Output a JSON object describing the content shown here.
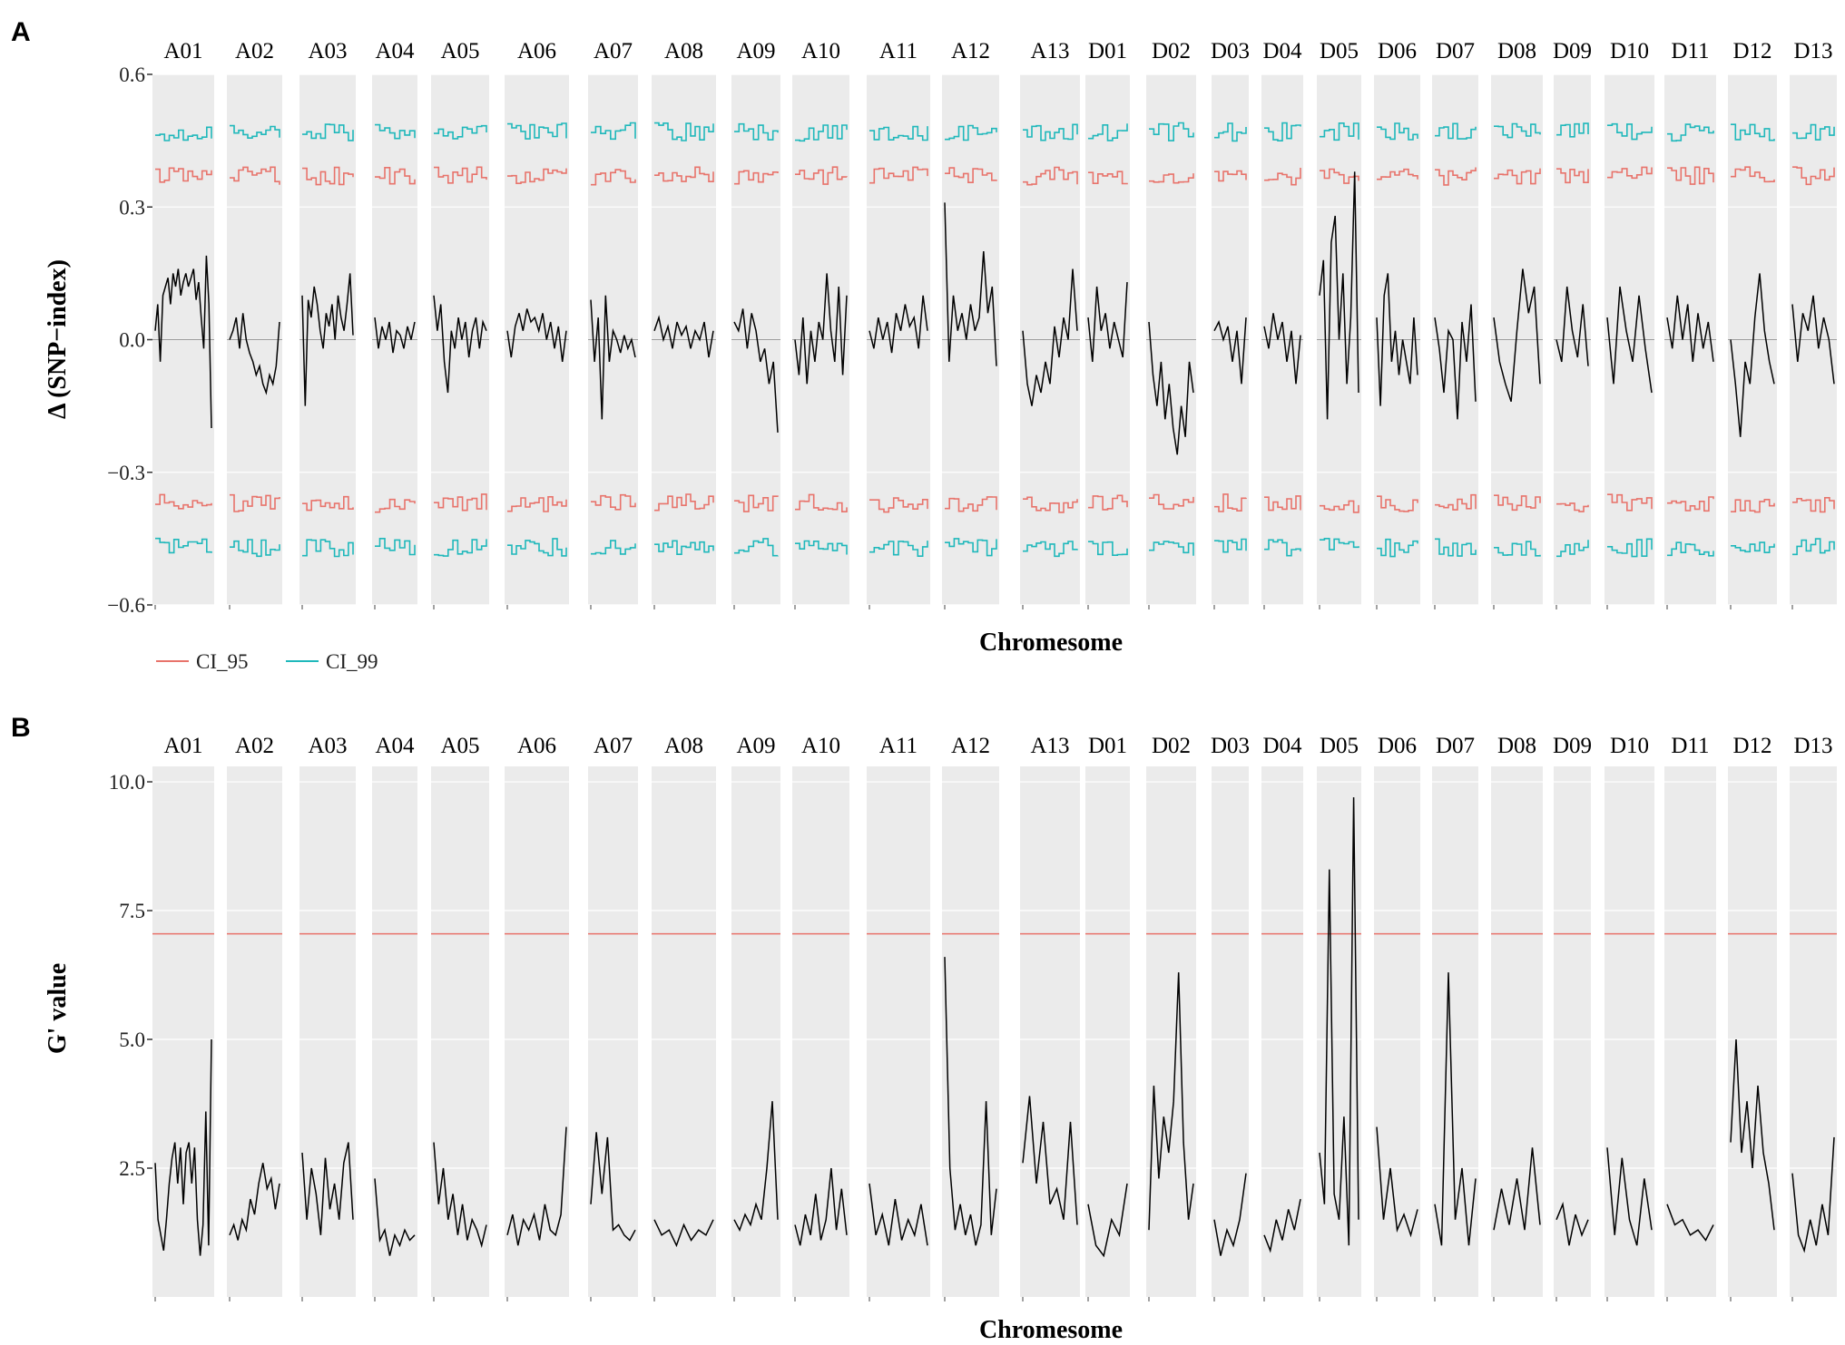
{
  "panels": {
    "A": {
      "letter": "A"
    },
    "B": {
      "letter": "B"
    }
  },
  "legend": {
    "ci95_label": "CI_95",
    "ci99_label": "CI_99",
    "ci95_color": "#e8736b",
    "ci99_color": "#1fb8bb"
  },
  "colors": {
    "panel_bg": "#ebebeb",
    "line": "#000000",
    "threshold": "#e8736b",
    "zero_line": "#9a9a9a"
  },
  "chart_data": [
    {
      "type": "line",
      "panel": "A",
      "title": "",
      "xlabel": "Chromesome",
      "ylabel": "Δ (SNP−index)",
      "ylim": [
        -0.6,
        0.6
      ],
      "yticks": [
        0.6,
        0.3,
        0.0,
        -0.3,
        -0.6
      ],
      "ytick_labels": [
        "0.6",
        "0.3",
        "0.0",
        "−0.3",
        "−0.6"
      ],
      "grid": true,
      "legend_position": "bottom-left",
      "categories": [
        "A01",
        "A02",
        "A03",
        "A04",
        "A05",
        "A06",
        "A07",
        "A08",
        "A09",
        "A10",
        "A11",
        "A12",
        "A13",
        "D01",
        "D02",
        "D03",
        "D04",
        "D05",
        "D06",
        "D07",
        "D08",
        "D09",
        "D10",
        "D11",
        "D12",
        "D13"
      ],
      "series": [
        {
          "name": "Δ(SNP-index)",
          "values": {
            "A01": [
              0.02,
              0.08,
              -0.05,
              0.1,
              0.12,
              0.14,
              0.08,
              0.15,
              0.12,
              0.16,
              0.1,
              0.13,
              0.15,
              0.12,
              0.14,
              0.16,
              0.09,
              0.13,
              0.05,
              -0.02,
              0.19,
              0.08,
              -0.2
            ],
            "A02": [
              0.0,
              0.02,
              0.05,
              -0.02,
              0.06,
              0.0,
              -0.03,
              -0.05,
              -0.08,
              -0.06,
              -0.1,
              -0.12,
              -0.08,
              -0.1,
              -0.06,
              0.04
            ],
            "A03": [
              0.1,
              -0.15,
              0.09,
              0.05,
              0.12,
              0.08,
              0.02,
              -0.02,
              0.06,
              0.03,
              0.08,
              0.0,
              0.1,
              0.05,
              0.02,
              0.08,
              0.15,
              0.01
            ],
            "A04": [
              0.05,
              -0.02,
              0.03,
              0.0,
              0.04,
              -0.03,
              0.02,
              0.01,
              -0.02,
              0.03,
              0.0,
              0.04
            ],
            "A05": [
              0.1,
              0.02,
              0.08,
              -0.05,
              -0.12,
              0.02,
              -0.02,
              0.05,
              0.0,
              0.04,
              -0.04,
              0.02,
              0.05,
              -0.02,
              0.04,
              0.02
            ],
            "A06": [
              0.02,
              -0.04,
              0.03,
              0.06,
              0.02,
              0.07,
              0.04,
              0.05,
              0.02,
              0.06,
              0.0,
              0.04,
              -0.02,
              0.03,
              -0.05,
              0.02
            ],
            "A07": [
              0.09,
              -0.05,
              0.05,
              -0.18,
              0.1,
              -0.05,
              0.02,
              0.0,
              -0.03,
              0.01,
              -0.02,
              0.0,
              -0.04
            ],
            "A08": [
              0.02,
              0.05,
              0.0,
              0.03,
              -0.02,
              0.04,
              0.01,
              0.03,
              -0.02,
              0.02,
              0.0,
              0.04,
              -0.04,
              0.02
            ],
            "A09": [
              0.04,
              0.02,
              0.07,
              -0.02,
              0.06,
              0.02,
              -0.05,
              -0.02,
              -0.1,
              -0.05,
              -0.21
            ],
            "A10": [
              0.0,
              -0.08,
              0.05,
              -0.1,
              0.02,
              -0.05,
              0.04,
              0.0,
              0.15,
              0.02,
              -0.05,
              0.12,
              -0.08,
              0.1
            ],
            "A11": [
              0.02,
              -0.02,
              0.05,
              0.0,
              0.04,
              -0.03,
              0.06,
              0.02,
              0.08,
              0.03,
              0.05,
              -0.02,
              0.1,
              0.02
            ],
            "A12": [
              0.31,
              -0.05,
              0.1,
              0.02,
              0.06,
              0.0,
              0.08,
              0.02,
              0.05,
              0.2,
              0.06,
              0.12,
              -0.06
            ],
            "A13": [
              0.02,
              -0.1,
              -0.15,
              -0.08,
              -0.12,
              -0.05,
              -0.1,
              0.03,
              -0.04,
              0.05,
              0.0,
              0.16,
              0.02
            ],
            "D01": [
              0.05,
              -0.05,
              0.12,
              0.02,
              0.06,
              -0.02,
              0.04,
              0.0,
              -0.04,
              0.13
            ],
            "D02": [
              0.04,
              -0.08,
              -0.15,
              -0.05,
              -0.18,
              -0.1,
              -0.2,
              -0.26,
              -0.15,
              -0.22,
              -0.05,
              -0.12
            ],
            "D03": [
              0.02,
              0.04,
              0.0,
              0.03,
              -0.05,
              0.02,
              -0.1,
              0.05
            ],
            "D04": [
              0.03,
              -0.02,
              0.06,
              0.0,
              0.04,
              -0.05,
              0.02,
              -0.1,
              0.01
            ],
            "D05": [
              0.1,
              0.18,
              -0.18,
              0.22,
              0.28,
              0.0,
              0.15,
              -0.1,
              0.05,
              0.38,
              -0.12
            ],
            "D06": [
              0.05,
              -0.15,
              0.1,
              0.15,
              -0.05,
              0.02,
              -0.08,
              0.0,
              -0.05,
              -0.1,
              0.05,
              -0.08
            ],
            "D07": [
              0.05,
              -0.02,
              -0.12,
              0.02,
              0.0,
              -0.18,
              0.04,
              -0.05,
              0.08,
              -0.14
            ],
            "D08": [
              0.05,
              -0.05,
              -0.1,
              -0.14,
              0.02,
              0.16,
              0.06,
              0.12,
              -0.1
            ],
            "D09": [
              0.0,
              -0.05,
              0.12,
              0.02,
              -0.04,
              0.08,
              -0.06
            ],
            "D10": [
              0.05,
              -0.1,
              0.12,
              0.02,
              -0.05,
              0.1,
              -0.02,
              -0.12
            ],
            "D11": [
              0.05,
              -0.02,
              0.1,
              0.0,
              0.08,
              -0.05,
              0.06,
              -0.02,
              0.04,
              -0.05
            ],
            "D12": [
              0.0,
              -0.1,
              -0.22,
              -0.05,
              -0.1,
              0.05,
              0.15,
              0.02,
              -0.05,
              -0.1
            ],
            "D13": [
              0.08,
              -0.05,
              0.06,
              0.02,
              0.1,
              -0.02,
              0.05,
              0.0,
              -0.1
            ]
          }
        }
      ],
      "thresholds": {
        "CI_95": {
          "upper": 0.37,
          "lower": -0.37
        },
        "CI_99": {
          "upper": 0.47,
          "lower": -0.47
        }
      }
    },
    {
      "type": "line",
      "panel": "B",
      "title": "",
      "xlabel": "Chromesome",
      "ylabel": "G' value",
      "ylim": [
        0.0,
        10.3
      ],
      "yticks": [
        10.0,
        7.5,
        5.0,
        2.5
      ],
      "ytick_labels": [
        "10.0",
        "7.5",
        "5.0",
        "2.5"
      ],
      "grid": true,
      "threshold": 7.05,
      "categories": [
        "A01",
        "A02",
        "A03",
        "A04",
        "A05",
        "A06",
        "A07",
        "A08",
        "A09",
        "A10",
        "A11",
        "A12",
        "A13",
        "D01",
        "D02",
        "D03",
        "D04",
        "D05",
        "D06",
        "D07",
        "D08",
        "D09",
        "D10",
        "D11",
        "D12",
        "D13"
      ],
      "series": [
        {
          "name": "G' value",
          "values": {
            "A01": [
              2.6,
              1.5,
              1.2,
              0.9,
              1.5,
              2.2,
              2.7,
              3.0,
              2.2,
              2.9,
              1.8,
              2.8,
              3.0,
              2.2,
              2.9,
              1.5,
              0.8,
              1.4,
              3.6,
              1.0,
              5.0
            ],
            "A02": [
              1.2,
              1.4,
              1.1,
              1.5,
              1.3,
              1.9,
              1.6,
              2.2,
              2.6,
              2.1,
              2.3,
              1.7,
              2.2
            ],
            "A03": [
              2.8,
              1.5,
              2.5,
              2.0,
              1.2,
              2.7,
              1.7,
              2.2,
              1.5,
              2.6,
              3.0,
              1.5
            ],
            "A04": [
              2.3,
              1.1,
              1.3,
              0.8,
              1.2,
              1.0,
              1.3,
              1.1,
              1.2
            ],
            "A05": [
              3.0,
              1.8,
              2.5,
              1.5,
              2.0,
              1.2,
              1.8,
              1.1,
              1.5,
              1.3,
              1.0,
              1.4
            ],
            "A06": [
              1.2,
              1.6,
              1.0,
              1.5,
              1.3,
              1.6,
              1.1,
              1.8,
              1.3,
              1.2,
              1.6,
              3.3
            ],
            "A07": [
              1.8,
              3.2,
              2.0,
              3.1,
              1.3,
              1.4,
              1.2,
              1.1,
              1.3
            ],
            "A08": [
              1.5,
              1.2,
              1.3,
              1.0,
              1.4,
              1.1,
              1.3,
              1.2,
              1.5
            ],
            "A09": [
              1.5,
              1.3,
              1.6,
              1.4,
              1.8,
              1.5,
              2.5,
              3.8,
              1.5
            ],
            "A10": [
              1.4,
              1.0,
              1.6,
              1.2,
              2.0,
              1.1,
              1.5,
              2.5,
              1.3,
              2.1,
              1.2
            ],
            "A11": [
              2.2,
              1.2,
              1.6,
              1.0,
              1.9,
              1.1,
              1.5,
              1.2,
              1.8,
              1.0
            ],
            "A12": [
              6.6,
              2.5,
              1.3,
              1.8,
              1.2,
              1.6,
              1.0,
              1.4,
              3.8,
              1.2,
              2.1
            ],
            "A13": [
              2.6,
              3.9,
              2.2,
              3.4,
              1.8,
              2.1,
              1.5,
              3.4,
              1.4
            ],
            "D01": [
              1.8,
              1.0,
              0.8,
              1.5,
              1.2,
              2.2
            ],
            "D02": [
              1.3,
              4.1,
              2.3,
              3.5,
              2.8,
              3.8,
              6.3,
              3.0,
              1.5,
              2.2
            ],
            "D03": [
              1.5,
              0.8,
              1.3,
              1.0,
              1.5,
              2.4
            ],
            "D04": [
              1.2,
              0.9,
              1.5,
              1.1,
              1.7,
              1.3,
              1.9
            ],
            "D05": [
              2.8,
              1.8,
              8.3,
              2.0,
              1.5,
              3.5,
              1.0,
              9.7,
              1.5
            ],
            "D06": [
              3.3,
              1.5,
              2.5,
              1.3,
              1.6,
              1.2,
              1.7
            ],
            "D07": [
              1.8,
              1.0,
              6.3,
              1.5,
              2.5,
              1.0,
              2.3
            ],
            "D08": [
              1.3,
              2.1,
              1.4,
              2.3,
              1.3,
              2.9,
              1.4
            ],
            "D09": [
              1.5,
              1.8,
              1.0,
              1.6,
              1.2,
              1.5
            ],
            "D10": [
              2.9,
              1.2,
              2.7,
              1.5,
              1.0,
              2.3,
              1.3
            ],
            "D11": [
              1.8,
              1.4,
              1.5,
              1.2,
              1.3,
              1.1,
              1.4
            ],
            "D12": [
              3.0,
              5.0,
              2.8,
              3.8,
              2.5,
              4.1,
              2.8,
              2.2,
              1.3
            ],
            "D13": [
              2.4,
              1.2,
              0.9,
              1.5,
              1.0,
              1.8,
              1.2,
              3.1
            ]
          }
        }
      ]
    }
  ]
}
